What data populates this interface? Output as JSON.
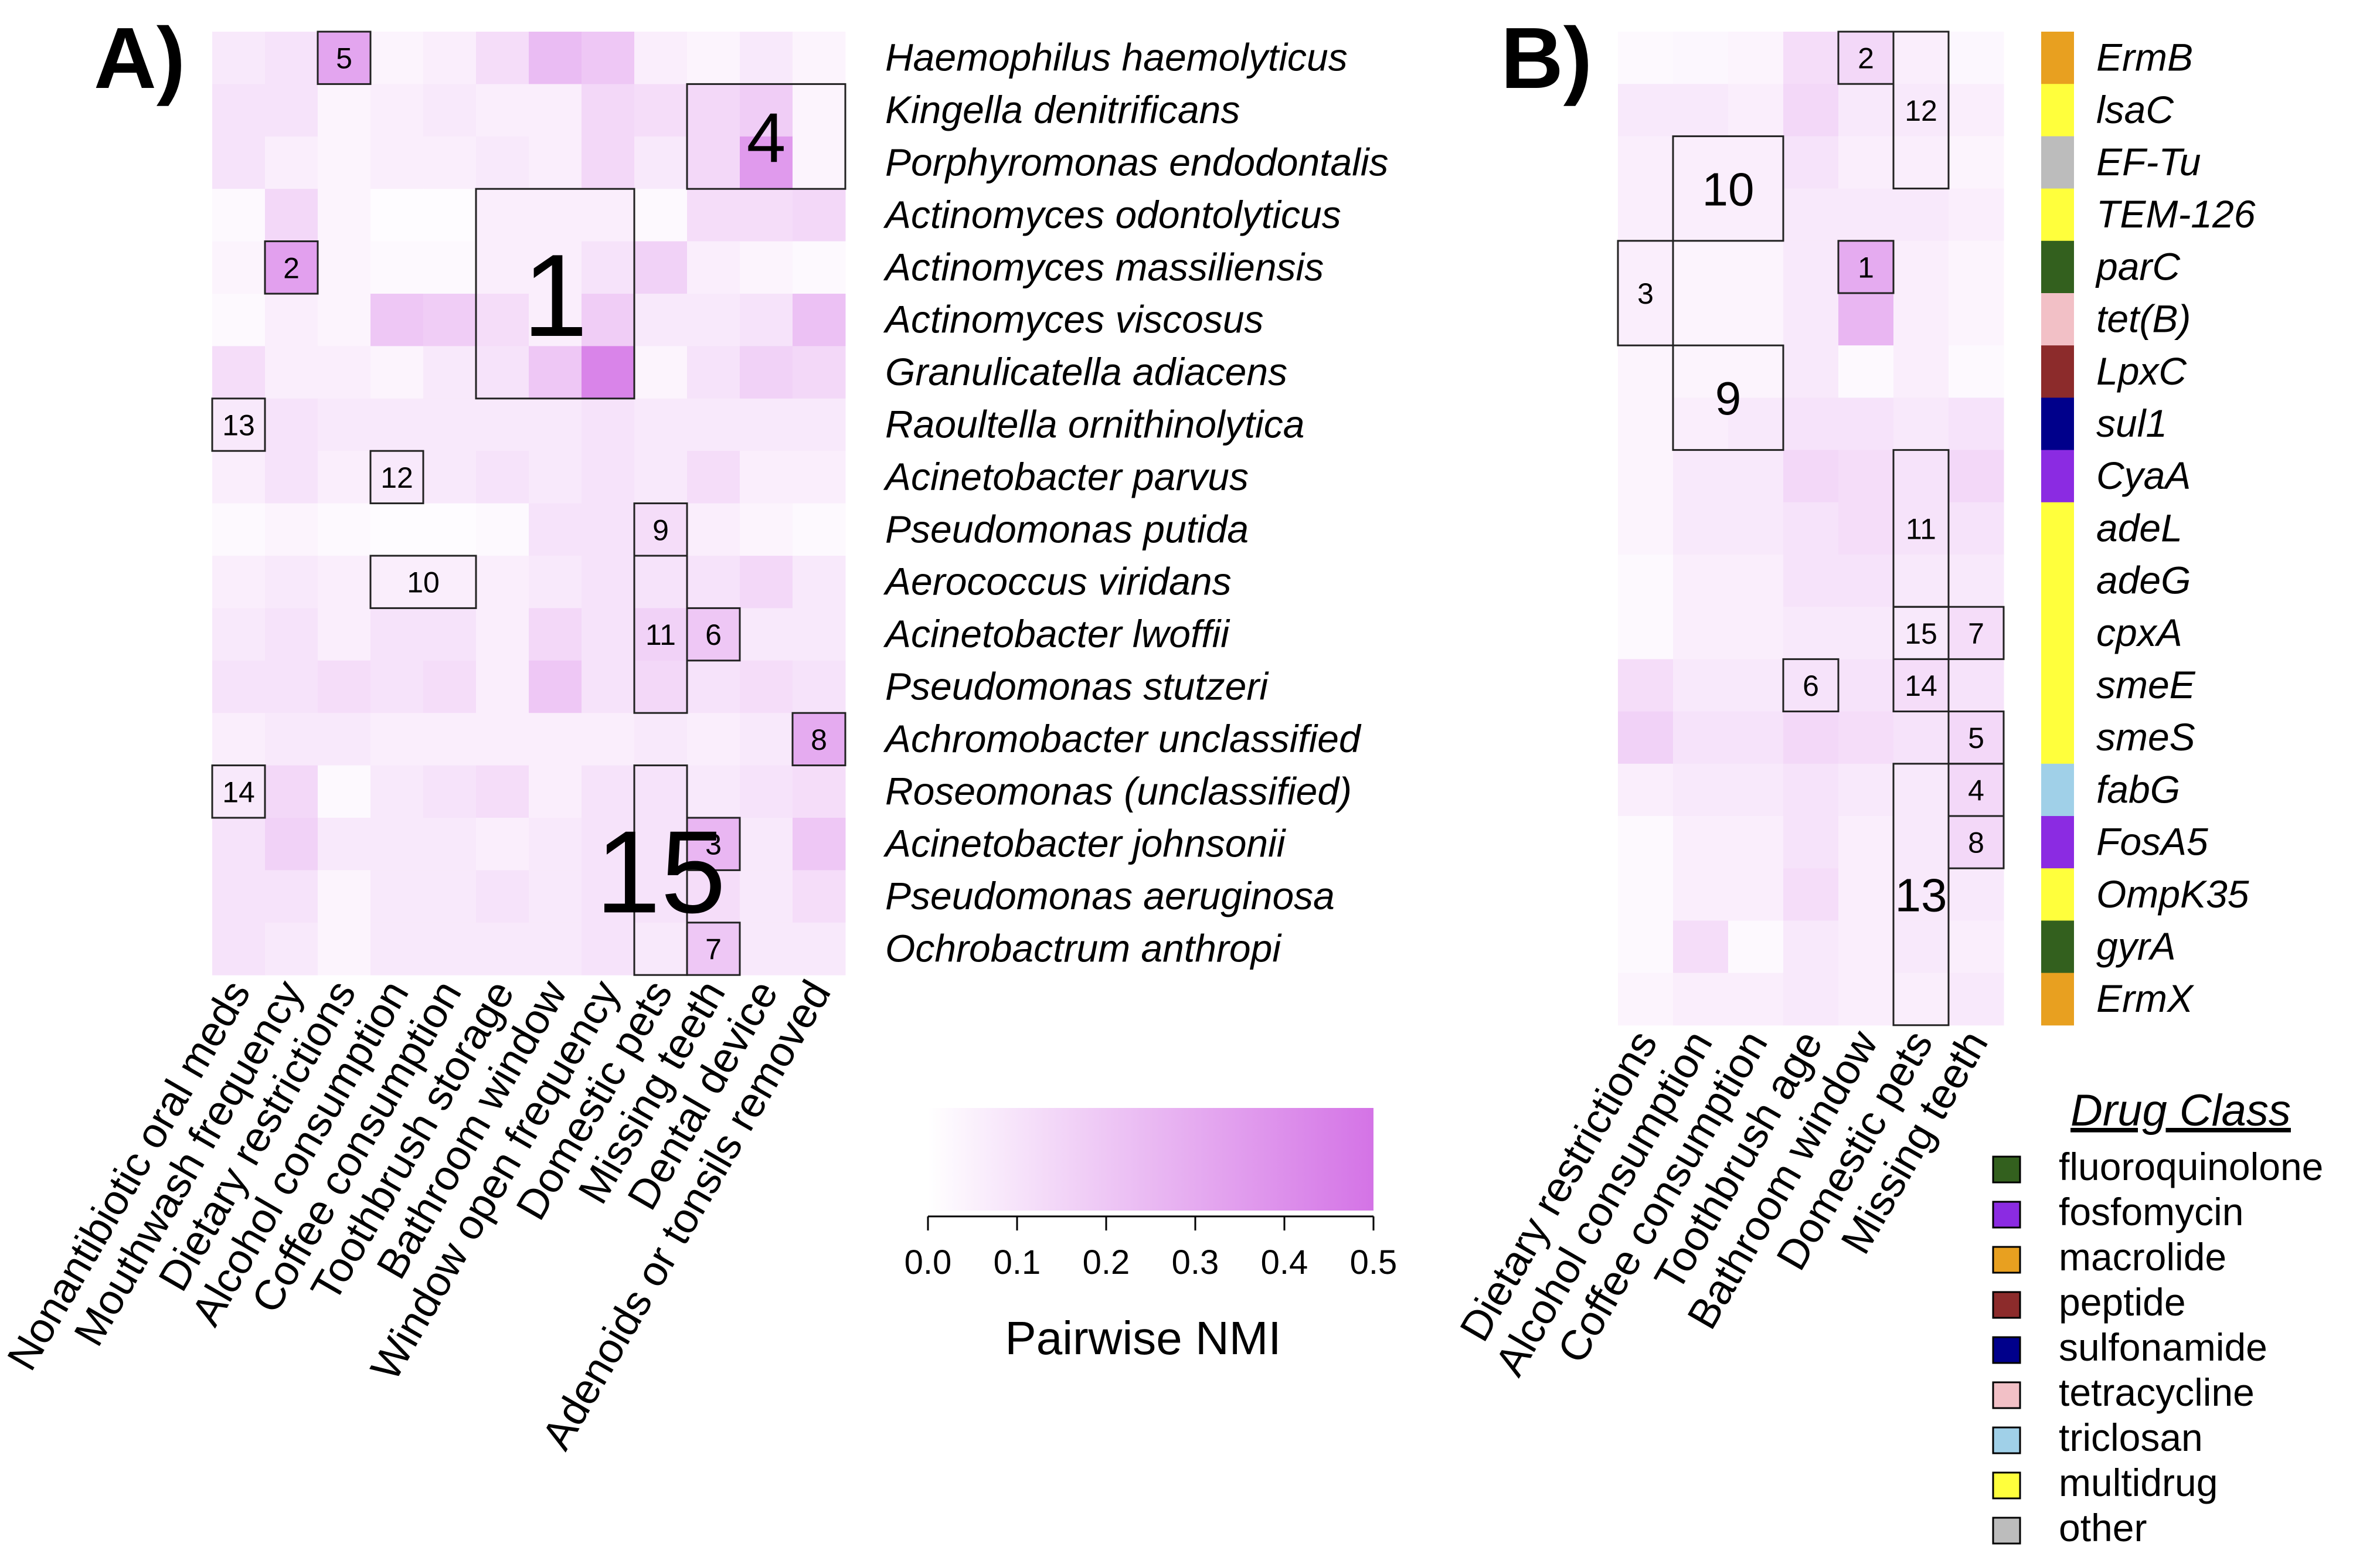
{
  "chart_data": [
    {
      "panel": "A)",
      "type": "heatmap",
      "rows": [
        "Haemophilus haemolyticus",
        "Kingella denitrificans",
        "Porphyromonas endodontalis",
        "Actinomyces odontolyticus",
        "Actinomyces massiliensis",
        "Actinomyces viscosus",
        "Granulicatella adiacens",
        "Raoultella ornithinolytica",
        "Acinetobacter parvus",
        "Pseudomonas putida",
        "Aerococcus viridans",
        "Acinetobacter lwoffii",
        "Pseudomonas stutzeri",
        "Achromobacter unclassified",
        "Roseomonas (unclassified)",
        "Acinetobacter johnsonii",
        "Pseudomonas aeruginosa",
        "Ochrobactrum anthropi"
      ],
      "columns": [
        "Nonantibiotic oral meds",
        "Mouthwash frequency",
        "Dietary restrictions",
        "Alcohol consumption",
        "Coffee consumption",
        "Toothbrush storage",
        "Bathroom window",
        "Window open frequency",
        "Domestic pets",
        "Missing teeth",
        "Dental device",
        "Adenoids or tonsils removed"
      ],
      "values": [
        [
          0.08,
          0.1,
          0.32,
          0.04,
          0.06,
          0.12,
          0.24,
          0.2,
          0.06,
          0.04,
          0.08,
          0.04
        ],
        [
          0.1,
          0.1,
          0.04,
          0.06,
          0.08,
          0.06,
          0.06,
          0.14,
          0.12,
          0.14,
          0.18,
          0.04
        ],
        [
          0.1,
          0.06,
          0.04,
          0.06,
          0.06,
          0.08,
          0.06,
          0.14,
          0.08,
          0.14,
          0.36,
          0.04
        ],
        [
          0.02,
          0.14,
          0.04,
          0.01,
          0.01,
          0.06,
          0.06,
          0.06,
          0.02,
          0.12,
          0.12,
          0.14
        ],
        [
          0.04,
          0.34,
          0.04,
          0.02,
          0.02,
          0.06,
          0.06,
          0.1,
          0.16,
          0.06,
          0.04,
          0.02
        ],
        [
          0.02,
          0.06,
          0.04,
          0.2,
          0.18,
          0.12,
          0.06,
          0.18,
          0.08,
          0.08,
          0.1,
          0.22
        ],
        [
          0.12,
          0.06,
          0.06,
          0.04,
          0.08,
          0.1,
          0.2,
          0.44,
          0.04,
          0.1,
          0.16,
          0.14
        ],
        [
          0.08,
          0.1,
          0.08,
          0.08,
          0.08,
          0.08,
          0.08,
          0.1,
          0.08,
          0.08,
          0.08,
          0.08
        ],
        [
          0.06,
          0.1,
          0.06,
          0.08,
          0.08,
          0.1,
          0.08,
          0.1,
          0.08,
          0.12,
          0.06,
          0.06
        ],
        [
          0.02,
          0.04,
          0.02,
          0.01,
          0.01,
          0.02,
          0.1,
          0.1,
          0.12,
          0.06,
          0.04,
          0.02
        ],
        [
          0.06,
          0.08,
          0.06,
          0.06,
          0.06,
          0.06,
          0.08,
          0.1,
          0.1,
          0.1,
          0.14,
          0.08
        ],
        [
          0.08,
          0.1,
          0.06,
          0.1,
          0.1,
          0.06,
          0.14,
          0.1,
          0.16,
          0.2,
          0.08,
          0.08
        ],
        [
          0.1,
          0.1,
          0.12,
          0.1,
          0.12,
          0.06,
          0.2,
          0.1,
          0.14,
          0.1,
          0.12,
          0.1
        ],
        [
          0.06,
          0.08,
          0.08,
          0.06,
          0.06,
          0.06,
          0.06,
          0.06,
          0.08,
          0.06,
          0.08,
          0.3
        ],
        [
          0.08,
          0.14,
          0.02,
          0.08,
          0.1,
          0.12,
          0.06,
          0.1,
          0.1,
          0.08,
          0.1,
          0.12
        ],
        [
          0.1,
          0.16,
          0.08,
          0.08,
          0.08,
          0.06,
          0.08,
          0.1,
          0.1,
          0.26,
          0.08,
          0.2
        ],
        [
          0.1,
          0.1,
          0.04,
          0.08,
          0.08,
          0.1,
          0.08,
          0.1,
          0.1,
          0.12,
          0.08,
          0.12
        ],
        [
          0.1,
          0.08,
          0.04,
          0.08,
          0.08,
          0.08,
          0.08,
          0.1,
          0.08,
          0.2,
          0.08,
          0.08
        ]
      ],
      "boxes": [
        {
          "label": "1",
          "rows": [
            3,
            6
          ],
          "cols": [
            5,
            7
          ]
        },
        {
          "label": "2",
          "rows": [
            4,
            4
          ],
          "cols": [
            1,
            1
          ]
        },
        {
          "label": "3",
          "rows": [
            15,
            15
          ],
          "cols": [
            9,
            9
          ]
        },
        {
          "label": "4",
          "rows": [
            1,
            2
          ],
          "cols": [
            9,
            11
          ]
        },
        {
          "label": "5",
          "rows": [
            0,
            0
          ],
          "cols": [
            2,
            2
          ]
        },
        {
          "label": "6",
          "rows": [
            11,
            11
          ],
          "cols": [
            9,
            9
          ]
        },
        {
          "label": "7",
          "rows": [
            17,
            17
          ],
          "cols": [
            9,
            9
          ]
        },
        {
          "label": "8",
          "rows": [
            13,
            13
          ],
          "cols": [
            11,
            11
          ]
        },
        {
          "label": "9",
          "rows": [
            9,
            9
          ],
          "cols": [
            8,
            8
          ]
        },
        {
          "label": "10",
          "rows": [
            10,
            10
          ],
          "cols": [
            3,
            4
          ]
        },
        {
          "label": "11",
          "rows": [
            10,
            12
          ],
          "cols": [
            8,
            8
          ]
        },
        {
          "label": "12",
          "rows": [
            8,
            8
          ],
          "cols": [
            3,
            3
          ]
        },
        {
          "label": "13",
          "rows": [
            7,
            7
          ],
          "cols": [
            0,
            0
          ]
        },
        {
          "label": "14",
          "rows": [
            14,
            14
          ],
          "cols": [
            0,
            0
          ]
        },
        {
          "label": "15",
          "rows": [
            14,
            17
          ],
          "cols": [
            8,
            8
          ]
        }
      ]
    },
    {
      "panel": "B)",
      "type": "heatmap",
      "rows": [
        "ErmB",
        "lsaC",
        "EF-Tu",
        "TEM-126",
        "parC",
        "tet(B)",
        "LpxC",
        "sul1",
        "CyaA",
        "adeL",
        "adeG",
        "cpxA",
        "smeE",
        "smeS",
        "fabG",
        "FosA5",
        "OmpK35",
        "gyrA",
        "ErmX"
      ],
      "row_classes": [
        "macrolide",
        "multidrug",
        "other",
        "multidrug",
        "fluoroquinolone",
        "tetracycline",
        "peptide",
        "sulfonamide",
        "fosfomycin",
        "multidrug",
        "multidrug",
        "multidrug",
        "multidrug",
        "multidrug",
        "triclosan",
        "fosfomycin",
        "multidrug",
        "fluoroquinolone",
        "macrolide"
      ],
      "columns": [
        "Dietary restrictions",
        "Alcohol consumption",
        "Coffee consumption",
        "Toothbrush age",
        "Bathroom window",
        "Domestic pets",
        "Missing teeth"
      ],
      "values": [
        [
          0.02,
          0.03,
          0.04,
          0.12,
          0.14,
          0.06,
          0.03
        ],
        [
          0.08,
          0.08,
          0.06,
          0.14,
          0.08,
          0.08,
          0.06
        ],
        [
          0.06,
          0.06,
          0.06,
          0.1,
          0.06,
          0.06,
          0.04
        ],
        [
          0.06,
          0.06,
          0.06,
          0.08,
          0.08,
          0.08,
          0.06
        ],
        [
          0.06,
          0.04,
          0.04,
          0.08,
          0.3,
          0.06,
          0.04
        ],
        [
          0.06,
          0.04,
          0.04,
          0.08,
          0.26,
          0.06,
          0.04
        ],
        [
          0.04,
          0.04,
          0.04,
          0.08,
          0.02,
          0.06,
          0.02
        ],
        [
          0.04,
          0.06,
          0.08,
          0.1,
          0.1,
          0.08,
          0.1
        ],
        [
          0.04,
          0.08,
          0.08,
          0.14,
          0.12,
          0.1,
          0.14
        ],
        [
          0.04,
          0.08,
          0.08,
          0.1,
          0.12,
          0.1,
          0.1
        ],
        [
          0.02,
          0.06,
          0.06,
          0.1,
          0.1,
          0.08,
          0.08
        ],
        [
          0.02,
          0.06,
          0.06,
          0.08,
          0.08,
          0.08,
          0.12
        ],
        [
          0.12,
          0.08,
          0.08,
          0.1,
          0.1,
          0.12,
          0.1
        ],
        [
          0.16,
          0.1,
          0.1,
          0.14,
          0.12,
          0.1,
          0.14
        ],
        [
          0.06,
          0.08,
          0.08,
          0.1,
          0.08,
          0.08,
          0.14
        ],
        [
          0.02,
          0.06,
          0.06,
          0.1,
          0.06,
          0.08,
          0.14
        ],
        [
          0.02,
          0.06,
          0.06,
          0.12,
          0.06,
          0.08,
          0.08
        ],
        [
          0.02,
          0.12,
          0.02,
          0.08,
          0.06,
          0.08,
          0.06
        ],
        [
          0.04,
          0.06,
          0.06,
          0.08,
          0.06,
          0.06,
          0.08
        ]
      ],
      "boxes": [
        {
          "label": "1",
          "rows": [
            4,
            4
          ],
          "cols": [
            4,
            4
          ]
        },
        {
          "label": "2",
          "rows": [
            0,
            0
          ],
          "cols": [
            4,
            4
          ]
        },
        {
          "label": "3",
          "rows": [
            4,
            5
          ],
          "cols": [
            0,
            0
          ]
        },
        {
          "label": "4",
          "rows": [
            14,
            14
          ],
          "cols": [
            6,
            6
          ]
        },
        {
          "label": "5",
          "rows": [
            13,
            13
          ],
          "cols": [
            6,
            6
          ]
        },
        {
          "label": "6",
          "rows": [
            12,
            12
          ],
          "cols": [
            3,
            3
          ]
        },
        {
          "label": "7",
          "rows": [
            11,
            11
          ],
          "cols": [
            6,
            6
          ]
        },
        {
          "label": "8",
          "rows": [
            15,
            15
          ],
          "cols": [
            6,
            6
          ]
        },
        {
          "label": "9",
          "rows": [
            6,
            7
          ],
          "cols": [
            1,
            2
          ]
        },
        {
          "label": "10",
          "rows": [
            2,
            3
          ],
          "cols": [
            1,
            2
          ]
        },
        {
          "label": "11",
          "rows": [
            8,
            10
          ],
          "cols": [
            5,
            5
          ]
        },
        {
          "label": "12",
          "rows": [
            0,
            2
          ],
          "cols": [
            5,
            5
          ]
        },
        {
          "label": "13",
          "rows": [
            14,
            18
          ],
          "cols": [
            5,
            5
          ]
        },
        {
          "label": "14",
          "rows": [
            12,
            12
          ],
          "cols": [
            5,
            5
          ]
        },
        {
          "label": "15",
          "rows": [
            11,
            11
          ],
          "cols": [
            5,
            5
          ]
        }
      ],
      "legend": {
        "title": "Drug Class",
        "items": [
          {
            "label": "fluoroquinolone",
            "color": "#33601e"
          },
          {
            "label": "fosfomycin",
            "color": "#8b2be2"
          },
          {
            "label": "macrolide",
            "color": "#e8a020"
          },
          {
            "label": "peptide",
            "color": "#8c2b2b"
          },
          {
            "label": "sulfonamide",
            "color": "#00008b"
          },
          {
            "label": "tetracycline",
            "color": "#f2c0c6"
          },
          {
            "label": "triclosan",
            "color": "#a0d0e8"
          },
          {
            "label": "multidrug",
            "color": "#ffff3c"
          },
          {
            "label": "other",
            "color": "#bcbcbc"
          }
        ]
      }
    }
  ],
  "colorbar": {
    "title": "Pairwise NMI",
    "ticks": [
      "0.0",
      "0.1",
      "0.2",
      "0.3",
      "0.4",
      "0.5"
    ],
    "min": 0.0,
    "max": 0.5,
    "color_low": "#ffffff",
    "color_high": "#d473e6"
  }
}
